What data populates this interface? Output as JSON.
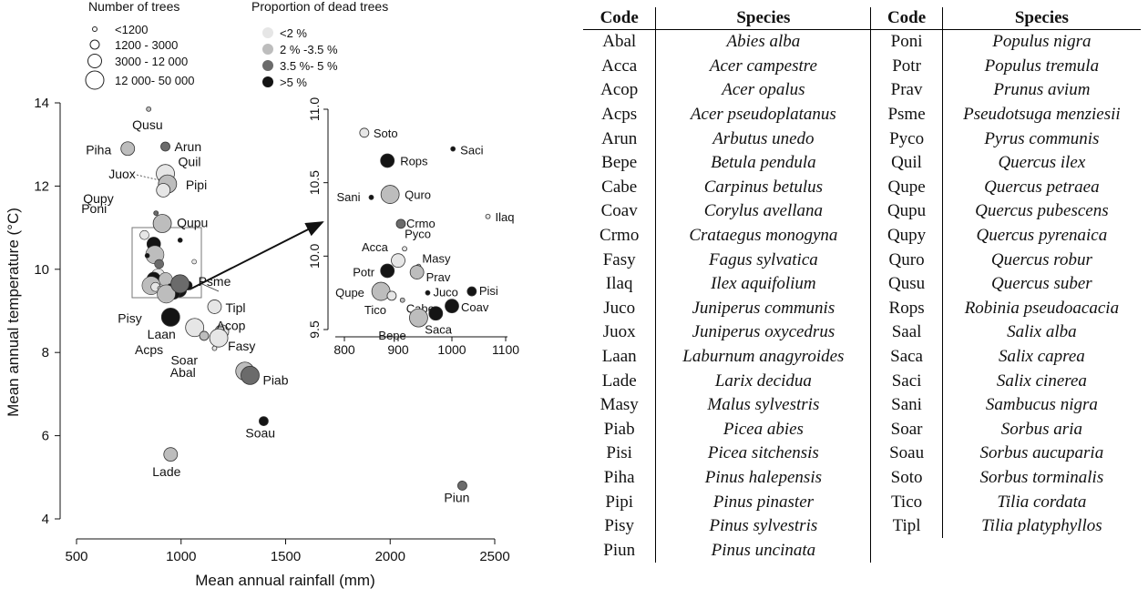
{
  "chart_data": {
    "type": "scatter",
    "xlabel": "Mean annual rainfall (mm)",
    "ylabel": "Mean annual temperature (°C)",
    "xlim": [
      500,
      2500
    ],
    "ylim": [
      4,
      14
    ],
    "xticks": [
      "500",
      "1000",
      "1500",
      "2000",
      "2500"
    ],
    "yticks": [
      "4",
      "6",
      "8",
      "10",
      "12",
      "14"
    ],
    "size_legend_title": "Number of trees",
    "size_legend": [
      {
        "label": "<1200",
        "r": 3
      },
      {
        "label": "1200  -  3000",
        "r": 5
      },
      {
        "label": "3000  - 12 000",
        "r": 7
      },
      {
        "label": "12 000-  50 000",
        "r": 9
      }
    ],
    "color_legend_title": "Proportion of dead trees",
    "color_legend": [
      {
        "label": "<2 %",
        "color": "#e6e6e6"
      },
      {
        "label": "2 %  -3.5 %",
        "color": "#bdbdbd"
      },
      {
        "label": "3.5 %-  5 %",
        "color": "#6b6b6b"
      },
      {
        "label": ">5 %",
        "color": "#141414"
      }
    ],
    "points": [
      {
        "code": "Qusu",
        "x": 845,
        "y": 13.85,
        "size": 0,
        "cls": 1
      },
      {
        "code": "Piha",
        "x": 745,
        "y": 12.9,
        "size": 2,
        "cls": 1
      },
      {
        "code": "Arun",
        "x": 925,
        "y": 12.95,
        "size": 1,
        "cls": 2
      },
      {
        "code": "Quil",
        "x": 925,
        "y": 12.3,
        "size": 3,
        "cls": 0
      },
      {
        "code": "Juox",
        "x": 915,
        "y": 12.1,
        "size": 0,
        "cls": 3
      },
      {
        "code": "Pipi",
        "x": 935,
        "y": 12.05,
        "size": 3,
        "cls": 1
      },
      {
        "code": "Qupy",
        "x": 915,
        "y": 11.9,
        "size": 2,
        "cls": 0
      },
      {
        "code": "Poni",
        "x": 880,
        "y": 11.35,
        "size": 0,
        "cls": 2
      },
      {
        "code": "Qupu",
        "x": 910,
        "y": 11.1,
        "size": 3,
        "cls": 1
      },
      {
        "code": "Psme",
        "x": 995,
        "y": 9.65,
        "size": 3,
        "cls": 2
      },
      {
        "code": "Tipl",
        "x": 1160,
        "y": 9.1,
        "size": 2,
        "cls": 0
      },
      {
        "code": "Pisy",
        "x": 950,
        "y": 8.85,
        "size": 3,
        "cls": 3
      },
      {
        "code": "Laan",
        "x": 1065,
        "y": 8.6,
        "size": 3,
        "cls": 0
      },
      {
        "code": "Acop",
        "x": 1195,
        "y": 8.5,
        "size": 2,
        "cls": 0
      },
      {
        "code": "Acps",
        "x": 1110,
        "y": 8.4,
        "size": 1,
        "cls": 1
      },
      {
        "code": "Fasy",
        "x": 1180,
        "y": 8.35,
        "size": 3,
        "cls": 0
      },
      {
        "code": "Soar",
        "x": 1160,
        "y": 8.1,
        "size": 0,
        "cls": 0
      },
      {
        "code": "Abal",
        "x": 1305,
        "y": 7.55,
        "size": 3,
        "cls": 1
      },
      {
        "code": "Piab",
        "x": 1330,
        "y": 7.45,
        "size": 3,
        "cls": 2
      },
      {
        "code": "Soau",
        "x": 1395,
        "y": 6.35,
        "size": 1,
        "cls": 3
      },
      {
        "code": "Lade",
        "x": 950,
        "y": 5.55,
        "size": 2,
        "cls": 1
      },
      {
        "code": "Piun",
        "x": 2345,
        "y": 4.8,
        "size": 1,
        "cls": 2
      }
    ],
    "inset": {
      "xlim": [
        780,
        1100
      ],
      "ylim": [
        9.5,
        11.0
      ],
      "xticks": [
        "800",
        "900",
        "1000",
        "1100"
      ],
      "yticks": [
        "9.5",
        "10.0",
        "10.5",
        "11.0"
      ],
      "points": [
        {
          "code": "Soto",
          "x": 837,
          "y": 10.84,
          "size": 1,
          "cls": 0
        },
        {
          "code": "Saci",
          "x": 1002,
          "y": 10.73,
          "size": 0,
          "cls": 3
        },
        {
          "code": "Rops",
          "x": 880,
          "y": 10.65,
          "size": 2,
          "cls": 3
        },
        {
          "code": "Quro",
          "x": 885,
          "y": 10.42,
          "size": 3,
          "cls": 1
        },
        {
          "code": "Sani",
          "x": 850,
          "y": 10.4,
          "size": 0,
          "cls": 3
        },
        {
          "code": "Ilaq",
          "x": 1067,
          "y": 10.27,
          "size": 0,
          "cls": 0
        },
        {
          "code": "Crmo",
          "x": 905,
          "y": 10.22,
          "size": 1,
          "cls": 2
        },
        {
          "code": "Pyco",
          "x": 912,
          "y": 10.05,
          "size": 0,
          "cls": 0
        },
        {
          "code": "Acca",
          "x": 900,
          "y": 9.97,
          "size": 2,
          "cls": 0
        },
        {
          "code": "Masy",
          "x": 938,
          "y": 9.93,
          "size": 0,
          "cls": 1
        },
        {
          "code": "Potr",
          "x": 880,
          "y": 9.9,
          "size": 2,
          "cls": 3
        },
        {
          "code": "Prav",
          "x": 935,
          "y": 9.89,
          "size": 2,
          "cls": 1
        },
        {
          "code": "Qupe",
          "x": 868,
          "y": 9.76,
          "size": 3,
          "cls": 1
        },
        {
          "code": "Juco",
          "x": 955,
          "y": 9.75,
          "size": 0,
          "cls": 3
        },
        {
          "code": "Pisi",
          "x": 1037,
          "y": 9.76,
          "size": 1,
          "cls": 3
        },
        {
          "code": "Tico",
          "x": 888,
          "y": 9.73,
          "size": 1,
          "cls": 0
        },
        {
          "code": "Cabe",
          "x": 908,
          "y": 9.7,
          "size": 0,
          "cls": 1
        },
        {
          "code": "Coav",
          "x": 1000,
          "y": 9.66,
          "size": 2,
          "cls": 3
        },
        {
          "code": "Saca",
          "x": 970,
          "y": 9.61,
          "size": 2,
          "cls": 3
        },
        {
          "code": "Bepe",
          "x": 938,
          "y": 9.58,
          "size": 3,
          "cls": 1
        }
      ]
    }
  },
  "table": {
    "headers": {
      "code": "Code",
      "species": "Species"
    },
    "left": [
      {
        "code": "Abal",
        "species": "Abies alba"
      },
      {
        "code": "Acca",
        "species": "Acer campestre"
      },
      {
        "code": "Acop",
        "species": "Acer opalus"
      },
      {
        "code": "Acps",
        "species": "Acer pseudoplatanus"
      },
      {
        "code": "Arun",
        "species": "Arbutus unedo"
      },
      {
        "code": "Bepe",
        "species": "Betula pendula"
      },
      {
        "code": "Cabe",
        "species": "Carpinus betulus"
      },
      {
        "code": "Coav",
        "species": "Corylus avellana"
      },
      {
        "code": "Crmo",
        "species": "Crataegus monogyna"
      },
      {
        "code": "Fasy",
        "species": "Fagus sylvatica"
      },
      {
        "code": "Ilaq",
        "species": "Ilex aquifolium"
      },
      {
        "code": "Juco",
        "species": "Juniperus communis"
      },
      {
        "code": "Juox",
        "species": "Juniperus oxycedrus"
      },
      {
        "code": "Laan",
        "species": "Laburnum anagyroides"
      },
      {
        "code": "Lade",
        "species": "Larix decidua"
      },
      {
        "code": "Masy",
        "species": "Malus sylvestris"
      },
      {
        "code": "Piab",
        "species": "Picea abies"
      },
      {
        "code": "Pisi",
        "species": "Picea sitchensis"
      },
      {
        "code": "Piha",
        "species": "Pinus halepensis"
      },
      {
        "code": "Pipi",
        "species": "Pinus pinaster"
      },
      {
        "code": "Pisy",
        "species": "Pinus sylvestris"
      },
      {
        "code": "Piun",
        "species": "Pinus uncinata"
      }
    ],
    "right": [
      {
        "code": "Poni",
        "species": "Populus nigra"
      },
      {
        "code": "Potr",
        "species": "Populus tremula"
      },
      {
        "code": "Prav",
        "species": "Prunus avium"
      },
      {
        "code": "Psme",
        "species": "Pseudotsuga menziesii"
      },
      {
        "code": "Pyco",
        "species": "Pyrus communis"
      },
      {
        "code": "Quil",
        "species": "Quercus ilex"
      },
      {
        "code": "Qupe",
        "species": "Quercus petraea"
      },
      {
        "code": "Qupu",
        "species": "Quercus pubescens"
      },
      {
        "code": "Qupy",
        "species": "Quercus pyrenaica"
      },
      {
        "code": "Quro",
        "species": "Quercus robur"
      },
      {
        "code": "Qusu",
        "species": "Quercus suber"
      },
      {
        "code": "Rops",
        "species": "Robinia pseudoacacia"
      },
      {
        "code": "Saal",
        "species": "Salix alba"
      },
      {
        "code": "Saca",
        "species": "Salix caprea"
      },
      {
        "code": "Saci",
        "species": "Salix cinerea"
      },
      {
        "code": "Sani",
        "species": "Sambucus nigra"
      },
      {
        "code": "Soar",
        "species": "Sorbus aria"
      },
      {
        "code": "Soau",
        "species": "Sorbus aucuparia"
      },
      {
        "code": "Soto",
        "species": "Sorbus torminalis"
      },
      {
        "code": "Tico",
        "species": "Tilia cordata"
      },
      {
        "code": "Tipl",
        "species": "Tilia platyphyllos"
      }
    ]
  }
}
